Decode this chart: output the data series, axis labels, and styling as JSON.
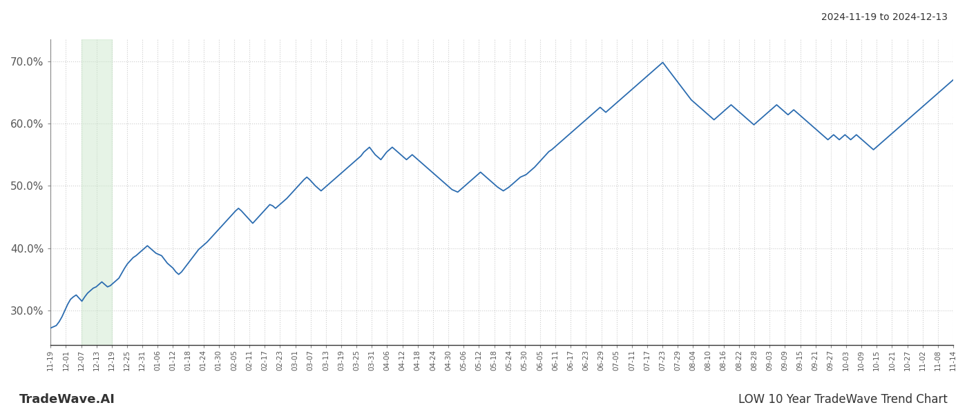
{
  "title_right": "2024-11-19 to 2024-12-13",
  "footer_left": "TradeWave.AI",
  "footer_right": "LOW 10 Year TradeWave Trend Chart",
  "line_color": "#2b6cb0",
  "line_width": 1.3,
  "grid_color": "#cccccc",
  "grid_style": ":",
  "background_color": "#ffffff",
  "shaded_region_color": "#c8e6c8",
  "shaded_region_alpha": 0.45,
  "ylim": [
    0.245,
    0.735
  ],
  "yticks": [
    0.3,
    0.4,
    0.5,
    0.6,
    0.7
  ],
  "ytick_labels": [
    "30.0%",
    "40.0%",
    "50.0%",
    "60.0%",
    "70.0%"
  ],
  "xtick_labels": [
    "11-19",
    "12-01",
    "12-07",
    "12-13",
    "12-19",
    "12-25",
    "12-31",
    "01-06",
    "01-12",
    "01-18",
    "01-24",
    "01-30",
    "02-05",
    "02-11",
    "02-17",
    "02-23",
    "03-01",
    "03-07",
    "03-13",
    "03-19",
    "03-25",
    "03-31",
    "04-06",
    "04-12",
    "04-18",
    "04-24",
    "04-30",
    "05-06",
    "05-12",
    "05-18",
    "05-24",
    "05-30",
    "06-05",
    "06-11",
    "06-17",
    "06-23",
    "06-29",
    "07-05",
    "07-11",
    "07-17",
    "07-23",
    "07-29",
    "08-04",
    "08-10",
    "08-16",
    "08-22",
    "08-28",
    "09-03",
    "09-09",
    "09-15",
    "09-21",
    "09-27",
    "10-03",
    "10-09",
    "10-15",
    "10-21",
    "10-27",
    "11-02",
    "11-08",
    "11-14"
  ],
  "shaded_x_start_label": "12-07",
  "shaded_x_end_label": "12-19",
  "values": [
    0.272,
    0.274,
    0.276,
    0.282,
    0.29,
    0.3,
    0.31,
    0.318,
    0.322,
    0.325,
    0.32,
    0.315,
    0.322,
    0.328,
    0.332,
    0.336,
    0.338,
    0.342,
    0.346,
    0.342,
    0.338,
    0.34,
    0.344,
    0.348,
    0.352,
    0.36,
    0.368,
    0.375,
    0.38,
    0.385,
    0.388,
    0.392,
    0.396,
    0.4,
    0.404,
    0.4,
    0.396,
    0.392,
    0.39,
    0.388,
    0.382,
    0.376,
    0.372,
    0.368,
    0.362,
    0.358,
    0.362,
    0.368,
    0.374,
    0.38,
    0.386,
    0.392,
    0.398,
    0.402,
    0.406,
    0.41,
    0.415,
    0.42,
    0.425,
    0.43,
    0.435,
    0.44,
    0.445,
    0.45,
    0.455,
    0.46,
    0.464,
    0.46,
    0.455,
    0.45,
    0.445,
    0.44,
    0.445,
    0.45,
    0.455,
    0.46,
    0.465,
    0.47,
    0.468,
    0.464,
    0.468,
    0.472,
    0.476,
    0.48,
    0.485,
    0.49,
    0.495,
    0.5,
    0.505,
    0.51,
    0.514,
    0.51,
    0.505,
    0.5,
    0.496,
    0.492,
    0.496,
    0.5,
    0.504,
    0.508,
    0.512,
    0.516,
    0.52,
    0.524,
    0.528,
    0.532,
    0.536,
    0.54,
    0.544,
    0.548,
    0.554,
    0.558,
    0.562,
    0.556,
    0.55,
    0.546,
    0.542,
    0.548,
    0.554,
    0.558,
    0.562,
    0.558,
    0.554,
    0.55,
    0.546,
    0.542,
    0.546,
    0.55,
    0.546,
    0.542,
    0.538,
    0.534,
    0.53,
    0.526,
    0.522,
    0.518,
    0.514,
    0.51,
    0.506,
    0.502,
    0.498,
    0.494,
    0.492,
    0.49,
    0.494,
    0.498,
    0.502,
    0.506,
    0.51,
    0.514,
    0.518,
    0.522,
    0.518,
    0.514,
    0.51,
    0.506,
    0.502,
    0.498,
    0.495,
    0.492,
    0.495,
    0.498,
    0.502,
    0.506,
    0.51,
    0.514,
    0.516,
    0.518,
    0.522,
    0.526,
    0.53,
    0.535,
    0.54,
    0.545,
    0.55,
    0.555,
    0.558,
    0.562,
    0.566,
    0.57,
    0.574,
    0.578,
    0.582,
    0.586,
    0.59,
    0.594,
    0.598,
    0.602,
    0.606,
    0.61,
    0.614,
    0.618,
    0.622,
    0.626,
    0.622,
    0.618,
    0.622,
    0.626,
    0.63,
    0.634,
    0.638,
    0.642,
    0.646,
    0.65,
    0.654,
    0.658,
    0.662,
    0.666,
    0.67,
    0.674,
    0.678,
    0.682,
    0.686,
    0.69,
    0.694,
    0.698,
    0.692,
    0.686,
    0.68,
    0.674,
    0.668,
    0.662,
    0.656,
    0.65,
    0.644,
    0.638,
    0.634,
    0.63,
    0.626,
    0.622,
    0.618,
    0.614,
    0.61,
    0.606,
    0.61,
    0.614,
    0.618,
    0.622,
    0.626,
    0.63,
    0.626,
    0.622,
    0.618,
    0.614,
    0.61,
    0.606,
    0.602,
    0.598,
    0.602,
    0.606,
    0.61,
    0.614,
    0.618,
    0.622,
    0.626,
    0.63,
    0.626,
    0.622,
    0.618,
    0.614,
    0.618,
    0.622,
    0.618,
    0.614,
    0.61,
    0.606,
    0.602,
    0.598,
    0.594,
    0.59,
    0.586,
    0.582,
    0.578,
    0.574,
    0.578,
    0.582,
    0.578,
    0.574,
    0.578,
    0.582,
    0.578,
    0.574,
    0.578,
    0.582,
    0.578,
    0.574,
    0.57,
    0.566,
    0.562,
    0.558,
    0.562,
    0.566,
    0.57,
    0.574,
    0.578,
    0.582,
    0.586,
    0.59,
    0.594,
    0.598,
    0.602,
    0.606,
    0.61,
    0.614,
    0.618,
    0.622,
    0.626,
    0.63,
    0.634,
    0.638,
    0.642,
    0.646,
    0.65,
    0.654,
    0.658,
    0.662,
    0.666,
    0.67
  ]
}
